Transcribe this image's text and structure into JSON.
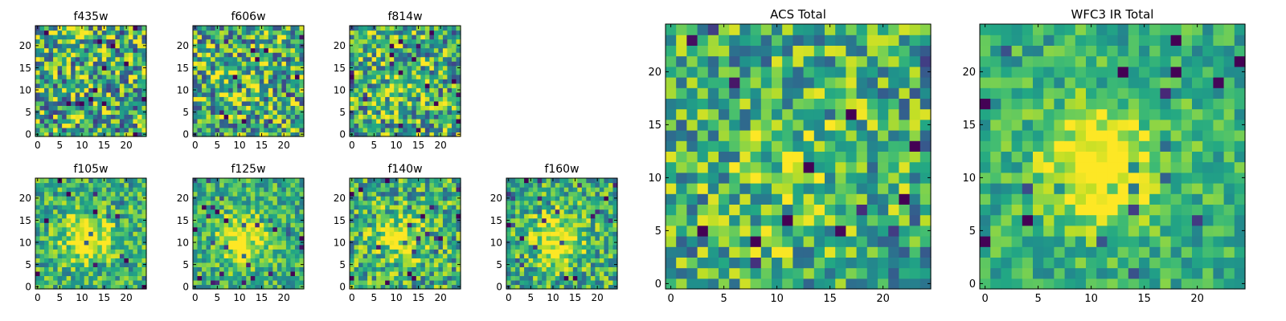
{
  "figure": {
    "colormap": "viridis",
    "colors": {
      "axes_frame": "#000000",
      "background": "#ffffff",
      "viridis_low": "#440154",
      "viridis_mid": "#21918c",
      "viridis_high": "#fde725"
    }
  },
  "chart_data": [
    {
      "type": "heatmap",
      "title": "f435w",
      "grid_size": [
        25,
        25
      ],
      "xlim": [
        0,
        24
      ],
      "ylim": [
        0,
        24
      ],
      "xticks": [
        "0",
        "5",
        "10",
        "15",
        "20"
      ],
      "yticks": [
        "0",
        "5",
        "10",
        "15",
        "20"
      ],
      "value_range": [
        0,
        1
      ],
      "central_source_strength": 0.05,
      "noise_level": 0.9,
      "seed": 11
    },
    {
      "type": "heatmap",
      "title": "f606w",
      "grid_size": [
        25,
        25
      ],
      "xlim": [
        0,
        24
      ],
      "ylim": [
        0,
        24
      ],
      "xticks": [
        "0",
        "5",
        "10",
        "15",
        "20"
      ],
      "yticks": [
        "0",
        "5",
        "10",
        "15",
        "20"
      ],
      "value_range": [
        0,
        1
      ],
      "central_source_strength": 0.1,
      "noise_level": 0.85,
      "seed": 23
    },
    {
      "type": "heatmap",
      "title": "f814w",
      "grid_size": [
        25,
        25
      ],
      "xlim": [
        0,
        24
      ],
      "ylim": [
        0,
        24
      ],
      "xticks": [
        "0",
        "5",
        "10",
        "15",
        "20"
      ],
      "yticks": [
        "0",
        "5",
        "10",
        "15",
        "20"
      ],
      "value_range": [
        0,
        1
      ],
      "central_source_strength": 0.15,
      "noise_level": 0.8,
      "seed": 37
    },
    {
      "type": "heatmap",
      "title": "f105w",
      "grid_size": [
        25,
        25
      ],
      "xlim": [
        0,
        24
      ],
      "ylim": [
        0,
        24
      ],
      "xticks": [
        "0",
        "5",
        "10",
        "15",
        "20"
      ],
      "yticks": [
        "0",
        "5",
        "10",
        "15",
        "20"
      ],
      "value_range": [
        0,
        1
      ],
      "central_source_strength": 0.45,
      "noise_level": 0.55,
      "seed": 41
    },
    {
      "type": "heatmap",
      "title": "f125w",
      "grid_size": [
        25,
        25
      ],
      "xlim": [
        0,
        24
      ],
      "ylim": [
        0,
        24
      ],
      "xticks": [
        "0",
        "5",
        "10",
        "15",
        "20"
      ],
      "yticks": [
        "0",
        "5",
        "10",
        "15",
        "20"
      ],
      "value_range": [
        0,
        1
      ],
      "central_source_strength": 0.45,
      "noise_level": 0.5,
      "seed": 53
    },
    {
      "type": "heatmap",
      "title": "f140w",
      "grid_size": [
        25,
        25
      ],
      "xlim": [
        0,
        24
      ],
      "ylim": [
        0,
        24
      ],
      "xticks": [
        "0",
        "5",
        "10",
        "15",
        "20"
      ],
      "yticks": [
        "0",
        "5",
        "10",
        "15",
        "20"
      ],
      "value_range": [
        0,
        1
      ],
      "central_source_strength": 0.35,
      "noise_level": 0.65,
      "seed": 67
    },
    {
      "type": "heatmap",
      "title": "f160w",
      "grid_size": [
        25,
        25
      ],
      "xlim": [
        0,
        24
      ],
      "ylim": [
        0,
        24
      ],
      "xticks": [
        "0",
        "5",
        "10",
        "15",
        "20"
      ],
      "yticks": [
        "0",
        "5",
        "10",
        "15",
        "20"
      ],
      "value_range": [
        0,
        1
      ],
      "central_source_strength": 0.45,
      "noise_level": 0.6,
      "seed": 79
    },
    {
      "type": "heatmap",
      "title": "ACS Total",
      "grid_size": [
        25,
        25
      ],
      "xlim": [
        0,
        24
      ],
      "ylim": [
        0,
        24
      ],
      "xticks": [
        "0",
        "5",
        "10",
        "15",
        "20"
      ],
      "yticks": [
        "0",
        "5",
        "10",
        "15",
        "20"
      ],
      "value_range": [
        0,
        1
      ],
      "central_source_strength": 0.2,
      "noise_level": 0.7,
      "seed": 97
    },
    {
      "type": "heatmap",
      "title": "WFC3 IR Total",
      "grid_size": [
        25,
        25
      ],
      "xlim": [
        0,
        24
      ],
      "ylim": [
        0,
        24
      ],
      "xticks": [
        "0",
        "5",
        "10",
        "15",
        "20"
      ],
      "yticks": [
        "0",
        "5",
        "10",
        "15",
        "20"
      ],
      "value_range": [
        0,
        1
      ],
      "central_source_strength": 0.55,
      "noise_level": 0.4,
      "seed": 113
    }
  ]
}
